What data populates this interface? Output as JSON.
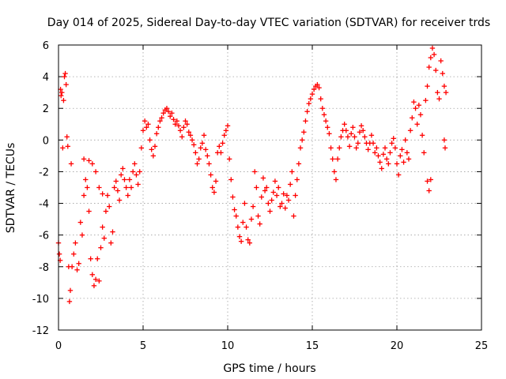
{
  "chart_data": {
    "type": "scatter",
    "title": "Day 014 of 2025, Sidereal Day-to-day VTEC variation (SDTVAR) for receiver trds",
    "xlabel": "GPS time / hours",
    "ylabel": "SDTVAR / TECUs",
    "xlim": [
      0,
      25
    ],
    "ylim": [
      -12,
      6
    ],
    "xticks": [
      "0",
      "5",
      "10",
      "15",
      "20",
      "25"
    ],
    "yticks": [
      "6",
      "4",
      "2",
      "0",
      "-2",
      "-4",
      "-6",
      "-8",
      "-10",
      "-12"
    ],
    "grid": true,
    "marker": "+",
    "color": "#ff0000",
    "series": [
      {
        "name": "trds",
        "points": [
          [
            0.0,
            -6.5
          ],
          [
            0.05,
            -7.2
          ],
          [
            0.1,
            -7.6
          ],
          [
            0.12,
            3.2
          ],
          [
            0.15,
            2.8
          ],
          [
            0.2,
            3.0
          ],
          [
            0.25,
            -0.5
          ],
          [
            0.3,
            2.5
          ],
          [
            0.35,
            4.0
          ],
          [
            0.4,
            4.2
          ],
          [
            0.45,
            3.5
          ],
          [
            0.5,
            0.2
          ],
          [
            0.55,
            -0.4
          ],
          [
            0.6,
            -8.0
          ],
          [
            0.65,
            -10.2
          ],
          [
            0.7,
            -9.5
          ],
          [
            0.75,
            -1.5
          ],
          [
            0.8,
            -8.0
          ],
          [
            0.9,
            -7.2
          ],
          [
            1.0,
            -6.5
          ],
          [
            1.1,
            -8.2
          ],
          [
            1.2,
            -7.8
          ],
          [
            1.3,
            -5.2
          ],
          [
            1.4,
            -6.0
          ],
          [
            1.5,
            -3.5
          ],
          [
            1.6,
            -2.5
          ],
          [
            1.7,
            -3.0
          ],
          [
            1.8,
            -4.5
          ],
          [
            1.9,
            -7.5
          ],
          [
            2.0,
            -8.5
          ],
          [
            2.1,
            -9.2
          ],
          [
            2.2,
            -8.8
          ],
          [
            2.3,
            -7.5
          ],
          [
            2.4,
            -8.9
          ],
          [
            2.5,
            -6.8
          ],
          [
            2.6,
            -5.5
          ],
          [
            2.7,
            -6.2
          ],
          [
            2.8,
            -4.5
          ],
          [
            2.9,
            -3.5
          ],
          [
            3.0,
            -4.2
          ],
          [
            1.5,
            -1.2
          ],
          [
            1.8,
            -1.3
          ],
          [
            2.0,
            -1.5
          ],
          [
            2.2,
            -2.0
          ],
          [
            2.4,
            -3.0
          ],
          [
            2.6,
            -3.4
          ],
          [
            3.1,
            -6.5
          ],
          [
            3.2,
            -5.8
          ],
          [
            3.3,
            -3.0
          ],
          [
            3.4,
            -2.6
          ],
          [
            3.5,
            -3.2
          ],
          [
            3.6,
            -3.8
          ],
          [
            3.7,
            -2.2
          ],
          [
            3.8,
            -1.8
          ],
          [
            3.9,
            -2.5
          ],
          [
            4.0,
            -3.0
          ],
          [
            4.1,
            -3.5
          ],
          [
            4.2,
            -2.5
          ],
          [
            4.3,
            -3.0
          ],
          [
            4.4,
            -2.0
          ],
          [
            4.5,
            -1.5
          ],
          [
            4.6,
            -2.2
          ],
          [
            4.7,
            -2.8
          ],
          [
            4.8,
            -2.0
          ],
          [
            4.9,
            -0.5
          ],
          [
            5.0,
            0.6
          ],
          [
            5.1,
            1.2
          ],
          [
            5.2,
            0.8
          ],
          [
            5.3,
            1.0
          ],
          [
            5.4,
            0.0
          ],
          [
            5.5,
            -0.6
          ],
          [
            5.6,
            -1.0
          ],
          [
            5.7,
            -0.4
          ],
          [
            5.8,
            0.4
          ],
          [
            5.9,
            0.8
          ],
          [
            6.0,
            1.2
          ],
          [
            6.1,
            1.4
          ],
          [
            6.2,
            1.7
          ],
          [
            6.3,
            1.9
          ],
          [
            6.4,
            2.0
          ],
          [
            6.5,
            1.8
          ],
          [
            6.6,
            1.5
          ],
          [
            6.7,
            1.7
          ],
          [
            6.8,
            1.3
          ],
          [
            6.9,
            1.0
          ],
          [
            7.0,
            1.2
          ],
          [
            7.1,
            0.9
          ],
          [
            7.2,
            0.6
          ],
          [
            7.3,
            0.2
          ],
          [
            7.4,
            0.8
          ],
          [
            7.5,
            1.2
          ],
          [
            7.6,
            1.0
          ],
          [
            7.7,
            0.5
          ],
          [
            7.8,
            0.3
          ],
          [
            7.9,
            0.0
          ],
          [
            8.0,
            -0.3
          ],
          [
            8.1,
            -0.8
          ],
          [
            8.2,
            -1.5
          ],
          [
            8.3,
            -1.2
          ],
          [
            8.4,
            -0.5
          ],
          [
            8.5,
            -0.2
          ],
          [
            8.6,
            0.3
          ],
          [
            8.7,
            -0.6
          ],
          [
            8.8,
            -1.0
          ],
          [
            8.9,
            -1.5
          ],
          [
            9.0,
            -2.2
          ],
          [
            9.1,
            -3.0
          ],
          [
            9.2,
            -3.3
          ],
          [
            9.3,
            -2.6
          ],
          [
            9.4,
            -0.8
          ],
          [
            9.5,
            -0.4
          ],
          [
            9.6,
            -0.8
          ],
          [
            9.7,
            -0.2
          ],
          [
            9.8,
            0.3
          ],
          [
            9.9,
            0.6
          ],
          [
            10.0,
            0.9
          ],
          [
            10.1,
            -1.2
          ],
          [
            10.2,
            -2.5
          ],
          [
            10.3,
            -3.6
          ],
          [
            10.4,
            -4.4
          ],
          [
            10.5,
            -4.8
          ],
          [
            10.6,
            -5.5
          ],
          [
            10.7,
            -6.1
          ],
          [
            10.8,
            -6.4
          ],
          [
            10.9,
            -5.2
          ],
          [
            11.0,
            -4.0
          ],
          [
            11.1,
            -5.5
          ],
          [
            11.2,
            -6.3
          ],
          [
            11.3,
            -6.5
          ],
          [
            11.4,
            -5.0
          ],
          [
            11.5,
            -4.2
          ],
          [
            11.6,
            -2.0
          ],
          [
            11.7,
            -3.0
          ],
          [
            11.8,
            -4.8
          ],
          [
            11.9,
            -5.3
          ],
          [
            12.0,
            -3.6
          ],
          [
            12.1,
            -2.4
          ],
          [
            12.2,
            -3.2
          ],
          [
            12.3,
            -3.0
          ],
          [
            12.4,
            -4.0
          ],
          [
            12.5,
            -4.5
          ],
          [
            12.6,
            -3.8
          ],
          [
            12.7,
            -3.3
          ],
          [
            12.8,
            -2.6
          ],
          [
            12.9,
            -3.5
          ],
          [
            13.0,
            -3.0
          ],
          [
            13.1,
            -4.2
          ],
          [
            13.2,
            -4.0
          ],
          [
            13.3,
            -3.4
          ],
          [
            13.4,
            -4.3
          ],
          [
            13.5,
            -3.5
          ],
          [
            13.6,
            -3.8
          ],
          [
            13.7,
            -2.8
          ],
          [
            13.8,
            -2.0
          ],
          [
            13.9,
            -4.8
          ],
          [
            14.0,
            -3.5
          ],
          [
            14.1,
            -2.5
          ],
          [
            14.2,
            -1.5
          ],
          [
            14.3,
            -0.5
          ],
          [
            14.4,
            0.0
          ],
          [
            14.5,
            0.5
          ],
          [
            14.6,
            1.2
          ],
          [
            14.7,
            1.8
          ],
          [
            14.8,
            2.3
          ],
          [
            14.9,
            2.6
          ],
          [
            15.0,
            2.9
          ],
          [
            15.1,
            3.2
          ],
          [
            15.2,
            3.4
          ],
          [
            15.3,
            3.5
          ],
          [
            15.4,
            3.3
          ],
          [
            15.5,
            2.6
          ],
          [
            15.6,
            2.0
          ],
          [
            15.7,
            1.6
          ],
          [
            15.8,
            1.2
          ],
          [
            15.9,
            0.8
          ],
          [
            16.0,
            0.4
          ],
          [
            16.1,
            -0.5
          ],
          [
            16.2,
            -1.2
          ],
          [
            16.3,
            -2.0
          ],
          [
            16.4,
            -2.5
          ],
          [
            16.5,
            -1.2
          ],
          [
            16.6,
            -0.5
          ],
          [
            16.7,
            0.2
          ],
          [
            16.8,
            0.6
          ],
          [
            16.9,
            1.0
          ],
          [
            17.0,
            0.6
          ],
          [
            17.1,
            0.2
          ],
          [
            17.2,
            -0.4
          ],
          [
            17.3,
            0.4
          ],
          [
            17.4,
            0.8
          ],
          [
            17.5,
            0.2
          ],
          [
            17.6,
            -0.5
          ],
          [
            17.7,
            -0.2
          ],
          [
            17.8,
            0.5
          ],
          [
            17.9,
            0.9
          ],
          [
            18.0,
            0.6
          ],
          [
            18.1,
            0.2
          ],
          [
            18.2,
            -0.2
          ],
          [
            18.3,
            -0.6
          ],
          [
            18.4,
            -0.2
          ],
          [
            18.5,
            0.3
          ],
          [
            18.6,
            -0.2
          ],
          [
            18.7,
            -0.8
          ],
          [
            18.8,
            -0.5
          ],
          [
            18.9,
            -1.0
          ],
          [
            19.0,
            -1.4
          ],
          [
            19.1,
            -1.8
          ],
          [
            19.2,
            -0.9
          ],
          [
            19.3,
            -0.5
          ],
          [
            19.4,
            -1.2
          ],
          [
            19.5,
            -1.5
          ],
          [
            19.6,
            -0.8
          ],
          [
            19.7,
            -0.2
          ],
          [
            19.8,
            0.1
          ],
          [
            19.9,
            -0.5
          ],
          [
            20.0,
            -1.5
          ],
          [
            20.1,
            -2.2
          ],
          [
            20.2,
            -1.0
          ],
          [
            20.3,
            -0.6
          ],
          [
            20.4,
            -1.4
          ],
          [
            20.5,
            0.0
          ],
          [
            20.6,
            -0.8
          ],
          [
            20.7,
            -1.2
          ],
          [
            20.8,
            0.6
          ],
          [
            20.9,
            1.4
          ],
          [
            21.0,
            2.4
          ],
          [
            21.1,
            2.0
          ],
          [
            21.2,
            1.0
          ],
          [
            21.3,
            2.2
          ],
          [
            21.4,
            1.6
          ],
          [
            21.5,
            0.3
          ],
          [
            21.6,
            -0.8
          ],
          [
            21.7,
            2.5
          ],
          [
            21.8,
            3.4
          ],
          [
            21.9,
            4.6
          ],
          [
            22.0,
            5.2
          ],
          [
            22.1,
            5.8
          ],
          [
            22.2,
            5.4
          ],
          [
            22.3,
            4.4
          ],
          [
            22.4,
            3.0
          ],
          [
            22.5,
            2.6
          ],
          [
            22.6,
            5.0
          ],
          [
            22.7,
            4.2
          ],
          [
            22.8,
            3.4
          ],
          [
            22.9,
            3.0
          ],
          [
            22.8,
            0.0
          ],
          [
            22.85,
            -0.5
          ],
          [
            21.8,
            -2.6
          ],
          [
            21.9,
            -3.2
          ],
          [
            22.0,
            -2.5
          ]
        ]
      }
    ]
  }
}
